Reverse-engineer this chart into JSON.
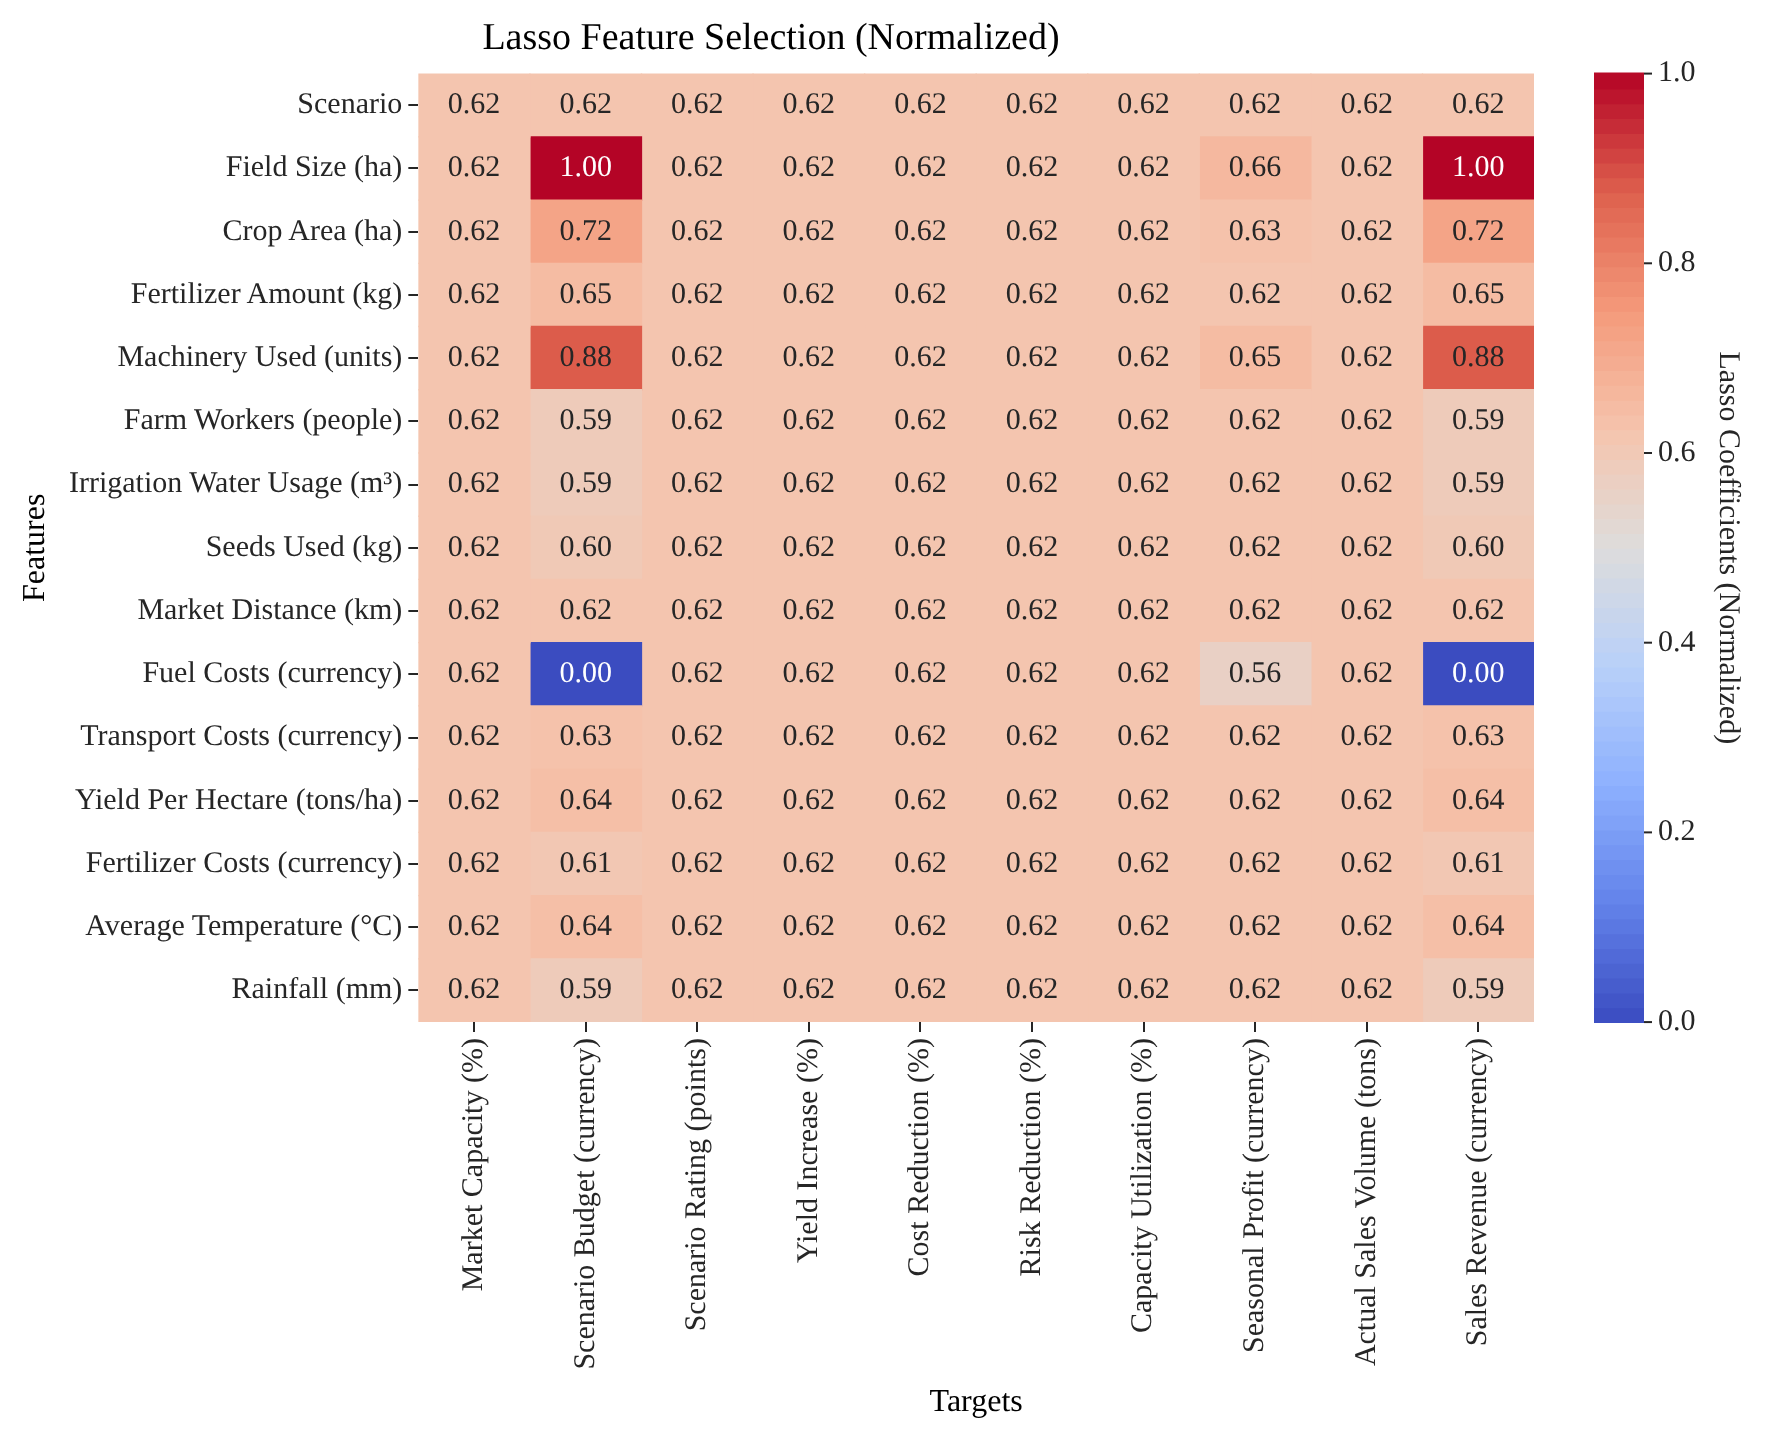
{
  "chart_data": {
    "type": "heatmap",
    "title": "Lasso Feature Selection (Normalized)",
    "xlabel": "Targets",
    "ylabel": "Features",
    "clabel": "Lasso Coefficients (Normalized)",
    "categories": [
      "Market Capacity (%)",
      "Scenario Budget (currency)",
      "Scenario Rating (points)",
      "Yield Increase (%)",
      "Cost Reduction (%)",
      "Risk Reduction (%)",
      "Capacity Utilization (%)",
      "Seasonal Profit (currency)",
      "Actual Sales Volume (tons)",
      "Sales Revenue (currency)"
    ],
    "y_categories": [
      "Scenario",
      "Field Size (ha)",
      "Crop Area (ha)",
      "Fertilizer Amount (kg)",
      "Machinery Used (units)",
      "Farm Workers (people)",
      "Irrigation Water Usage (m³)",
      "Seeds Used (kg)",
      "Market Distance (km)",
      "Fuel Costs (currency)",
      "Transport Costs (currency)",
      "Yield Per Hectare (tons/ha)",
      "Fertilizer Costs (currency)",
      "Average Temperature (°C)",
      "Rainfall (mm)"
    ],
    "cells": [
      [
        0.62,
        0.62,
        0.62,
        0.62,
        0.62,
        0.62,
        0.62,
        0.62,
        0.62,
        0.62
      ],
      [
        0.62,
        1.0,
        0.62,
        0.62,
        0.62,
        0.62,
        0.62,
        0.66,
        0.62,
        1.0
      ],
      [
        0.62,
        0.72,
        0.62,
        0.62,
        0.62,
        0.62,
        0.62,
        0.63,
        0.62,
        0.72
      ],
      [
        0.62,
        0.65,
        0.62,
        0.62,
        0.62,
        0.62,
        0.62,
        0.62,
        0.62,
        0.65
      ],
      [
        0.62,
        0.88,
        0.62,
        0.62,
        0.62,
        0.62,
        0.62,
        0.65,
        0.62,
        0.88
      ],
      [
        0.62,
        0.59,
        0.62,
        0.62,
        0.62,
        0.62,
        0.62,
        0.62,
        0.62,
        0.59
      ],
      [
        0.62,
        0.59,
        0.62,
        0.62,
        0.62,
        0.62,
        0.62,
        0.62,
        0.62,
        0.59
      ],
      [
        0.62,
        0.6,
        0.62,
        0.62,
        0.62,
        0.62,
        0.62,
        0.62,
        0.62,
        0.6
      ],
      [
        0.62,
        0.62,
        0.62,
        0.62,
        0.62,
        0.62,
        0.62,
        0.62,
        0.62,
        0.62
      ],
      [
        0.62,
        0.0,
        0.62,
        0.62,
        0.62,
        0.62,
        0.62,
        0.56,
        0.62,
        0.0
      ],
      [
        0.62,
        0.63,
        0.62,
        0.62,
        0.62,
        0.62,
        0.62,
        0.62,
        0.62,
        0.63
      ],
      [
        0.62,
        0.64,
        0.62,
        0.62,
        0.62,
        0.62,
        0.62,
        0.62,
        0.62,
        0.64
      ],
      [
        0.62,
        0.61,
        0.62,
        0.62,
        0.62,
        0.62,
        0.62,
        0.62,
        0.62,
        0.61
      ],
      [
        0.62,
        0.64,
        0.62,
        0.62,
        0.62,
        0.62,
        0.62,
        0.62,
        0.62,
        0.64
      ],
      [
        0.62,
        0.59,
        0.62,
        0.62,
        0.62,
        0.62,
        0.62,
        0.62,
        0.62,
        0.59
      ]
    ],
    "clim": [
      0.0,
      1.0
    ],
    "cticks": [
      {
        "value": 0.0,
        "label": "0.0"
      },
      {
        "value": 0.2,
        "label": "0.2"
      },
      {
        "value": 0.4,
        "label": "0.4"
      },
      {
        "value": 0.6,
        "label": "0.6"
      },
      {
        "value": 0.8,
        "label": "0.8"
      },
      {
        "value": 1.0,
        "label": "1.0"
      }
    ],
    "data_labels": true,
    "cell_labels": [
      [
        "0.62",
        "0.62",
        "0.62",
        "0.62",
        "0.62",
        "0.62",
        "0.62",
        "0.62",
        "0.62",
        "0.62"
      ],
      [
        "0.62",
        "1.00",
        "0.62",
        "0.62",
        "0.62",
        "0.62",
        "0.62",
        "0.66",
        "0.62",
        "1.00"
      ],
      [
        "0.62",
        "0.72",
        "0.62",
        "0.62",
        "0.62",
        "0.62",
        "0.62",
        "0.63",
        "0.62",
        "0.72"
      ],
      [
        "0.62",
        "0.65",
        "0.62",
        "0.62",
        "0.62",
        "0.62",
        "0.62",
        "0.62",
        "0.62",
        "0.65"
      ],
      [
        "0.62",
        "0.88",
        "0.62",
        "0.62",
        "0.62",
        "0.62",
        "0.62",
        "0.65",
        "0.62",
        "0.88"
      ],
      [
        "0.62",
        "0.59",
        "0.62",
        "0.62",
        "0.62",
        "0.62",
        "0.62",
        "0.62",
        "0.62",
        "0.59"
      ],
      [
        "0.62",
        "0.59",
        "0.62",
        "0.62",
        "0.62",
        "0.62",
        "0.62",
        "0.62",
        "0.62",
        "0.59"
      ],
      [
        "0.62",
        "0.60",
        "0.62",
        "0.62",
        "0.62",
        "0.62",
        "0.62",
        "0.62",
        "0.62",
        "0.60"
      ],
      [
        "0.62",
        "0.62",
        "0.62",
        "0.62",
        "0.62",
        "0.62",
        "0.62",
        "0.62",
        "0.62",
        "0.62"
      ],
      [
        "0.62",
        "0.00",
        "0.62",
        "0.62",
        "0.62",
        "0.62",
        "0.62",
        "0.56",
        "0.62",
        "0.00"
      ],
      [
        "0.62",
        "0.63",
        "0.62",
        "0.62",
        "0.62",
        "0.62",
        "0.62",
        "0.62",
        "0.62",
        "0.63"
      ],
      [
        "0.62",
        "0.64",
        "0.62",
        "0.62",
        "0.62",
        "0.62",
        "0.62",
        "0.62",
        "0.62",
        "0.64"
      ],
      [
        "0.62",
        "0.61",
        "0.62",
        "0.62",
        "0.62",
        "0.62",
        "0.62",
        "0.62",
        "0.62",
        "0.61"
      ],
      [
        "0.62",
        "0.64",
        "0.62",
        "0.62",
        "0.62",
        "0.62",
        "0.62",
        "0.62",
        "0.62",
        "0.64"
      ],
      [
        "0.62",
        "0.59",
        "0.62",
        "0.62",
        "0.62",
        "0.62",
        "0.62",
        "0.62",
        "0.62",
        "0.59"
      ]
    ]
  }
}
